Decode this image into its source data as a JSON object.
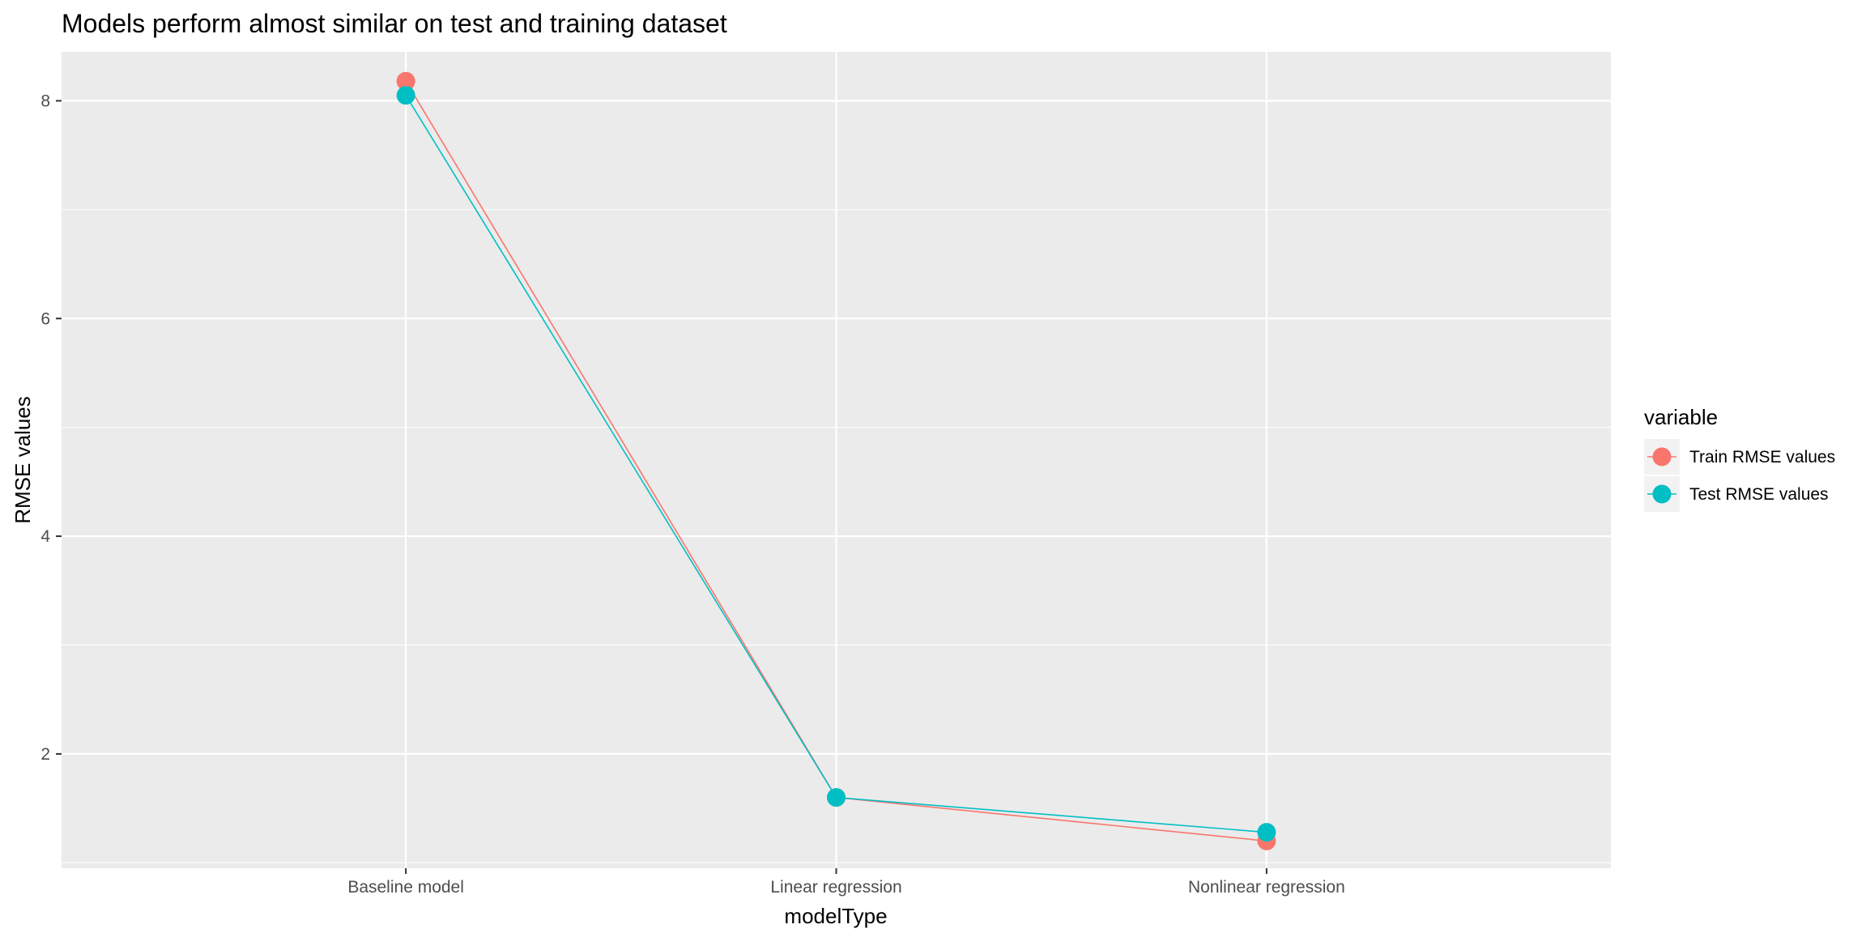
{
  "chart_data": {
    "type": "line",
    "title": "Models perform almost similar on test and training dataset",
    "xlabel": "modelType",
    "ylabel": "RMSE values",
    "categories": [
      "Baseline model",
      "Linear regression",
      "Nonlinear regression"
    ],
    "ylim": [
      0.95,
      8.45
    ],
    "yticks": [
      2,
      4,
      6,
      8
    ],
    "grid": true,
    "legend": {
      "title": "variable",
      "position": "right"
    },
    "series": [
      {
        "name": "Train RMSE values",
        "color": "#F8766D",
        "values": [
          8.18,
          1.6,
          1.2
        ]
      },
      {
        "name": "Test RMSE values",
        "color": "#00BFC4",
        "values": [
          8.05,
          1.6,
          1.28
        ]
      }
    ],
    "panel_background": "#EBEBEB",
    "grid_color": "#FFFFFF"
  }
}
